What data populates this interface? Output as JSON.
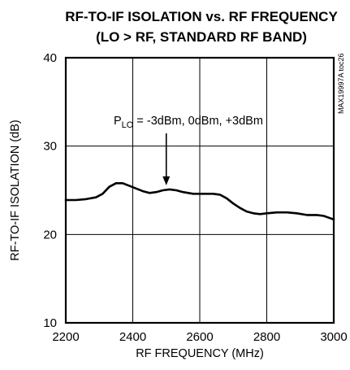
{
  "chart_data": {
    "type": "line",
    "title_line1": "RF-TO-IF ISOLATION vs. RF FREQUENCY",
    "title_line2": "(LO > RF, STANDARD RF BAND)",
    "xlabel": "RF FREQUENCY (MHz)",
    "ylabel": "RF-TO-IF ISOLATION (dB)",
    "xlim": [
      2200,
      3000
    ],
    "ylim": [
      10,
      40
    ],
    "x_ticks": [
      "2200",
      "2400",
      "2600",
      "2800",
      "3000"
    ],
    "y_ticks": [
      "10",
      "20",
      "30",
      "40"
    ],
    "grid": true,
    "side_id": "MAX19997A toc26",
    "annotation": {
      "prefix": "P",
      "subscript": "LO",
      "text": " = -3dBm, 0dBm, +3dBm",
      "x": 2500,
      "y": 25.2
    },
    "series": [
      {
        "color": "#000000",
        "x": [
          2200,
          2230,
          2260,
          2290,
          2310,
          2330,
          2350,
          2370,
          2390,
          2410,
          2430,
          2450,
          2470,
          2490,
          2510,
          2530,
          2550,
          2580,
          2610,
          2640,
          2660,
          2680,
          2700,
          2720,
          2740,
          2760,
          2780,
          2800,
          2830,
          2860,
          2890,
          2920,
          2950,
          2970,
          2985,
          3000
        ],
        "y": [
          23.9,
          23.9,
          24.0,
          24.2,
          24.6,
          25.4,
          25.8,
          25.8,
          25.5,
          25.2,
          24.9,
          24.7,
          24.8,
          25.0,
          25.1,
          25.0,
          24.8,
          24.6,
          24.6,
          24.6,
          24.5,
          24.1,
          23.5,
          23.0,
          22.6,
          22.4,
          22.3,
          22.4,
          22.5,
          22.5,
          22.4,
          22.2,
          22.2,
          22.1,
          21.9,
          21.7
        ]
      }
    ]
  }
}
